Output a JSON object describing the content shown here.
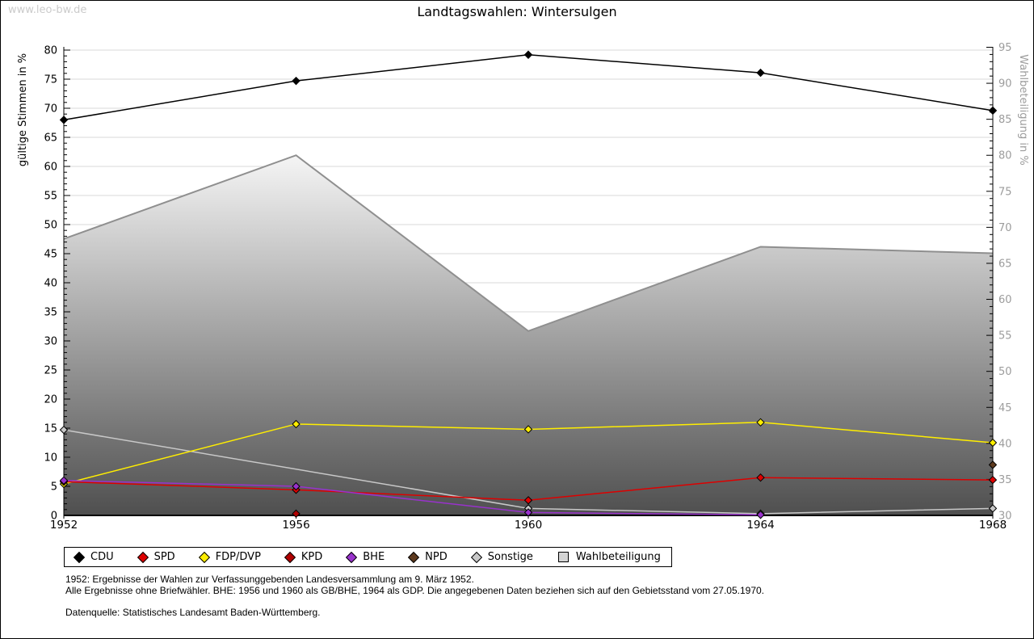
{
  "page": {
    "watermark": "www.leo-bw.de",
    "title": "Landtagswahlen: Wintersulgen"
  },
  "chart_data": {
    "type": "line",
    "title": "Landtagswahlen: Wintersulgen",
    "x_labels": [
      "1952",
      "1956",
      "1960",
      "1964",
      "1968"
    ],
    "left_axis": {
      "label": "gültige Stimmen in %",
      "min": 0,
      "max": 80,
      "major_step": 5,
      "minor_step": 1,
      "text_color": "#000000"
    },
    "right_axis": {
      "label": "Wahlbeteiligung in %",
      "min": 30,
      "max": 95,
      "major_step": 5,
      "minor_step": 1,
      "text_color": "#9c9c9c"
    },
    "grid": "horizontal",
    "legend_position": "bottom",
    "area_series": {
      "name": "Wahlbeteiligung",
      "axis": "right",
      "values": [
        68.4,
        80,
        55.6,
        67.3,
        66.4
      ],
      "stroke": "#8f8f8f",
      "fill_top": "#f5f5f5",
      "fill_bottom": "#4f4f4f"
    },
    "series": [
      {
        "name": "Sonstige",
        "color": "#c8c8c8",
        "values": [
          14.7,
          null,
          1.2,
          0.3,
          1.2
        ]
      },
      {
        "name": "FDP/DVP",
        "color": "#ffee00",
        "values": [
          5.4,
          15.7,
          14.8,
          16,
          12.5
        ]
      },
      {
        "name": "SPD",
        "color": "#dd0000",
        "values": [
          5.8,
          4.4,
          2.6,
          6.5,
          6.1
        ]
      },
      {
        "name": "KPD",
        "color": "#b00000",
        "values": [
          null,
          0.3,
          null,
          null,
          null
        ]
      },
      {
        "name": "BHE",
        "color": "#9932cc",
        "values": [
          6,
          5,
          0.5,
          0.1,
          null
        ]
      },
      {
        "name": "NPD",
        "color": "#5e3a1e",
        "values": [
          null,
          null,
          null,
          null,
          8.7
        ]
      },
      {
        "name": "CDU",
        "color": "#000000",
        "values": [
          68,
          74.7,
          79.2,
          76.1,
          69.6
        ]
      }
    ]
  },
  "legend": {
    "items": [
      {
        "label": "CDU",
        "color": "#000000",
        "shape": "diamond"
      },
      {
        "label": "SPD",
        "color": "#dd0000",
        "shape": "diamond"
      },
      {
        "label": "FDP/DVP",
        "color": "#ffee00",
        "shape": "diamond"
      },
      {
        "label": "KPD",
        "color": "#b00000",
        "shape": "diamond"
      },
      {
        "label": "BHE",
        "color": "#9932cc",
        "shape": "diamond"
      },
      {
        "label": "NPD",
        "color": "#5e3a1e",
        "shape": "diamond"
      },
      {
        "label": "Sonstige",
        "color": "#c8c8c8",
        "shape": "diamond"
      },
      {
        "label": "Wahlbeteiligung",
        "color": "#d4d4d4",
        "shape": "square"
      }
    ]
  },
  "footnotes": {
    "line1": "1952: Ergebnisse der Wahlen zur Verfassunggebenden Landesversammlung am 9. März 1952.",
    "line2": "Alle Ergebnisse ohne Briefwähler. BHE: 1956 und 1960 als GB/BHE, 1964 als GDP. Die angegebenen Daten beziehen sich auf den Gebietsstand vom 27.05.1970.",
    "source": "Datenquelle: Statistisches Landesamt Baden-Württemberg."
  }
}
